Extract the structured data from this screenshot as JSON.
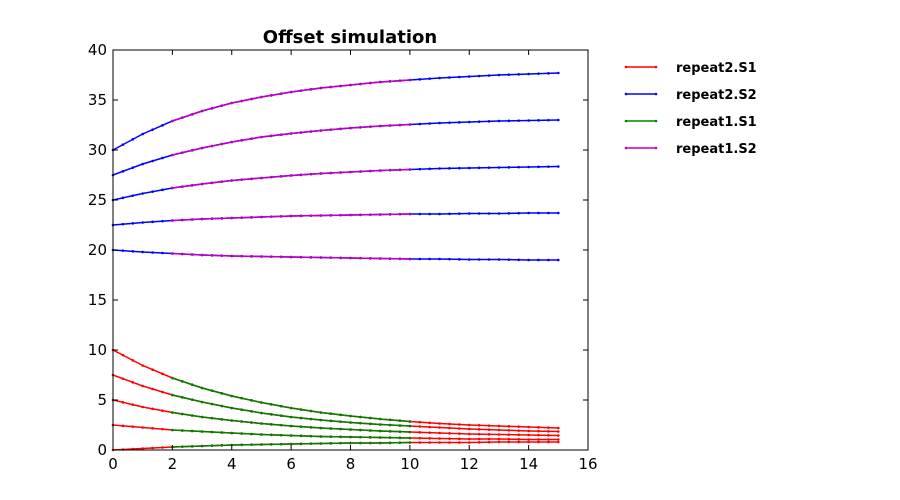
{
  "chart_data": {
    "type": "line",
    "title": "Offset simulation",
    "xlabel": "",
    "ylabel": "",
    "xlim": [
      0,
      16
    ],
    "ylim": [
      0,
      40
    ],
    "xticks": [
      0,
      2,
      4,
      6,
      8,
      10,
      12,
      14,
      16
    ],
    "yticks": [
      0,
      5,
      10,
      15,
      20,
      25,
      30,
      35,
      40
    ],
    "grid": false,
    "legend_position": "outside right, top",
    "series": [
      {
        "name": "repeat2.S1",
        "color": "#ff0000",
        "curves": [
          {
            "x": [
              0,
              1,
              2,
              3,
              4,
              5,
              6,
              7,
              8,
              9,
              10,
              11,
              12,
              13,
              14,
              15
            ],
            "y": [
              10.0,
              8.45,
              7.2,
              6.2,
              5.4,
              4.75,
              4.2,
              3.75,
              3.4,
              3.1,
              2.85,
              2.65,
              2.5,
              2.4,
              2.3,
              2.2
            ]
          },
          {
            "x": [
              0,
              1,
              2,
              3,
              4,
              5,
              6,
              7,
              8,
              9,
              10,
              11,
              12,
              13,
              14,
              15
            ],
            "y": [
              7.5,
              6.4,
              5.5,
              4.8,
              4.2,
              3.7,
              3.3,
              3.0,
              2.75,
              2.55,
              2.4,
              2.25,
              2.1,
              2.0,
              1.9,
              1.85
            ]
          },
          {
            "x": [
              0,
              1,
              2,
              3,
              4,
              5,
              6,
              7,
              8,
              9,
              10,
              11,
              12,
              13,
              14,
              15
            ],
            "y": [
              5.0,
              4.3,
              3.75,
              3.3,
              2.95,
              2.65,
              2.4,
              2.2,
              2.05,
              1.9,
              1.8,
              1.7,
              1.6,
              1.55,
              1.5,
              1.45
            ]
          },
          {
            "x": [
              0,
              1,
              2,
              3,
              4,
              5,
              6,
              7,
              8,
              9,
              10,
              11,
              12,
              13,
              14,
              15
            ],
            "y": [
              2.5,
              2.25,
              2.0,
              1.85,
              1.7,
              1.55,
              1.45,
              1.35,
              1.3,
              1.25,
              1.2,
              1.15,
              1.1,
              1.1,
              1.05,
              1.05
            ]
          },
          {
            "x": [
              0,
              1,
              2,
              3,
              4,
              5,
              6,
              7,
              8,
              9,
              10,
              11,
              12,
              13,
              14,
              15
            ],
            "y": [
              0.0,
              0.15,
              0.3,
              0.4,
              0.5,
              0.55,
              0.6,
              0.65,
              0.7,
              0.7,
              0.75,
              0.75,
              0.75,
              0.8,
              0.8,
              0.8
            ]
          }
        ]
      },
      {
        "name": "repeat2.S2",
        "color": "#0000ff",
        "curves": [
          {
            "x": [
              0,
              1,
              2,
              3,
              4,
              5,
              6,
              7,
              8,
              9,
              10,
              11,
              12,
              13,
              14,
              15
            ],
            "y": [
              30.0,
              31.6,
              32.9,
              33.9,
              34.7,
              35.3,
              35.8,
              36.2,
              36.5,
              36.8,
              37.0,
              37.2,
              37.35,
              37.5,
              37.6,
              37.7
            ]
          },
          {
            "x": [
              0,
              1,
              2,
              3,
              4,
              5,
              6,
              7,
              8,
              9,
              10,
              11,
              12,
              13,
              14,
              15
            ],
            "y": [
              27.5,
              28.6,
              29.5,
              30.2,
              30.8,
              31.3,
              31.65,
              31.95,
              32.2,
              32.4,
              32.55,
              32.7,
              32.8,
              32.9,
              32.95,
              33.0
            ]
          },
          {
            "x": [
              0,
              1,
              2,
              3,
              4,
              5,
              6,
              7,
              8,
              9,
              10,
              11,
              12,
              13,
              14,
              15
            ],
            "y": [
              25.0,
              25.65,
              26.2,
              26.6,
              26.95,
              27.2,
              27.45,
              27.65,
              27.8,
              27.95,
              28.05,
              28.15,
              28.2,
              28.25,
              28.3,
              28.35
            ]
          },
          {
            "x": [
              0,
              1,
              2,
              3,
              4,
              5,
              6,
              7,
              8,
              9,
              10,
              11,
              12,
              13,
              14,
              15
            ],
            "y": [
              22.5,
              22.75,
              22.95,
              23.1,
              23.2,
              23.3,
              23.4,
              23.45,
              23.5,
              23.55,
              23.6,
              23.6,
              23.65,
              23.65,
              23.7,
              23.7
            ]
          },
          {
            "x": [
              0,
              1,
              2,
              3,
              4,
              5,
              6,
              7,
              8,
              9,
              10,
              11,
              12,
              13,
              14,
              15
            ],
            "y": [
              20.0,
              19.8,
              19.65,
              19.5,
              19.4,
              19.35,
              19.3,
              19.25,
              19.2,
              19.15,
              19.1,
              19.1,
              19.05,
              19.05,
              19.0,
              19.0
            ]
          }
        ]
      },
      {
        "name": "repeat1.S1",
        "color": "#008000",
        "curves": [
          {
            "x": [
              2,
              3,
              4,
              5,
              6,
              7,
              8,
              9,
              10
            ],
            "y": [
              7.2,
              6.2,
              5.4,
              4.75,
              4.2,
              3.75,
              3.4,
              3.1,
              2.85
            ]
          },
          {
            "x": [
              2,
              3,
              4,
              5,
              6,
              7,
              8,
              9,
              10
            ],
            "y": [
              5.5,
              4.8,
              4.2,
              3.7,
              3.3,
              3.0,
              2.75,
              2.55,
              2.4
            ]
          },
          {
            "x": [
              2,
              3,
              4,
              5,
              6,
              7,
              8,
              9,
              10
            ],
            "y": [
              3.75,
              3.3,
              2.95,
              2.65,
              2.4,
              2.2,
              2.05,
              1.9,
              1.8
            ]
          },
          {
            "x": [
              2,
              3,
              4,
              5,
              6,
              7,
              8,
              9,
              10
            ],
            "y": [
              2.0,
              1.85,
              1.7,
              1.55,
              1.45,
              1.35,
              1.3,
              1.25,
              1.2
            ]
          },
          {
            "x": [
              2,
              3,
              4,
              5,
              6,
              7,
              8,
              9,
              10
            ],
            "y": [
              0.3,
              0.4,
              0.5,
              0.55,
              0.6,
              0.65,
              0.7,
              0.7,
              0.75
            ]
          }
        ]
      },
      {
        "name": "repeat1.S2",
        "color": "#bf00bf",
        "curves": [
          {
            "x": [
              2,
              3,
              4,
              5,
              6,
              7,
              8,
              9,
              10
            ],
            "y": [
              32.9,
              33.9,
              34.7,
              35.3,
              35.8,
              36.2,
              36.5,
              36.8,
              37.0
            ]
          },
          {
            "x": [
              2,
              3,
              4,
              5,
              6,
              7,
              8,
              9,
              10
            ],
            "y": [
              29.5,
              30.2,
              30.8,
              31.3,
              31.65,
              31.95,
              32.2,
              32.4,
              32.55
            ]
          },
          {
            "x": [
              2,
              3,
              4,
              5,
              6,
              7,
              8,
              9,
              10
            ],
            "y": [
              26.2,
              26.6,
              26.95,
              27.2,
              27.45,
              27.65,
              27.8,
              27.95,
              28.05
            ]
          },
          {
            "x": [
              2,
              3,
              4,
              5,
              6,
              7,
              8,
              9,
              10
            ],
            "y": [
              22.95,
              23.1,
              23.2,
              23.3,
              23.4,
              23.45,
              23.5,
              23.55,
              23.6
            ]
          },
          {
            "x": [
              2,
              3,
              4,
              5,
              6,
              7,
              8,
              9,
              10
            ],
            "y": [
              19.65,
              19.5,
              19.4,
              19.35,
              19.3,
              19.25,
              19.2,
              19.15,
              19.1
            ]
          }
        ]
      }
    ]
  }
}
